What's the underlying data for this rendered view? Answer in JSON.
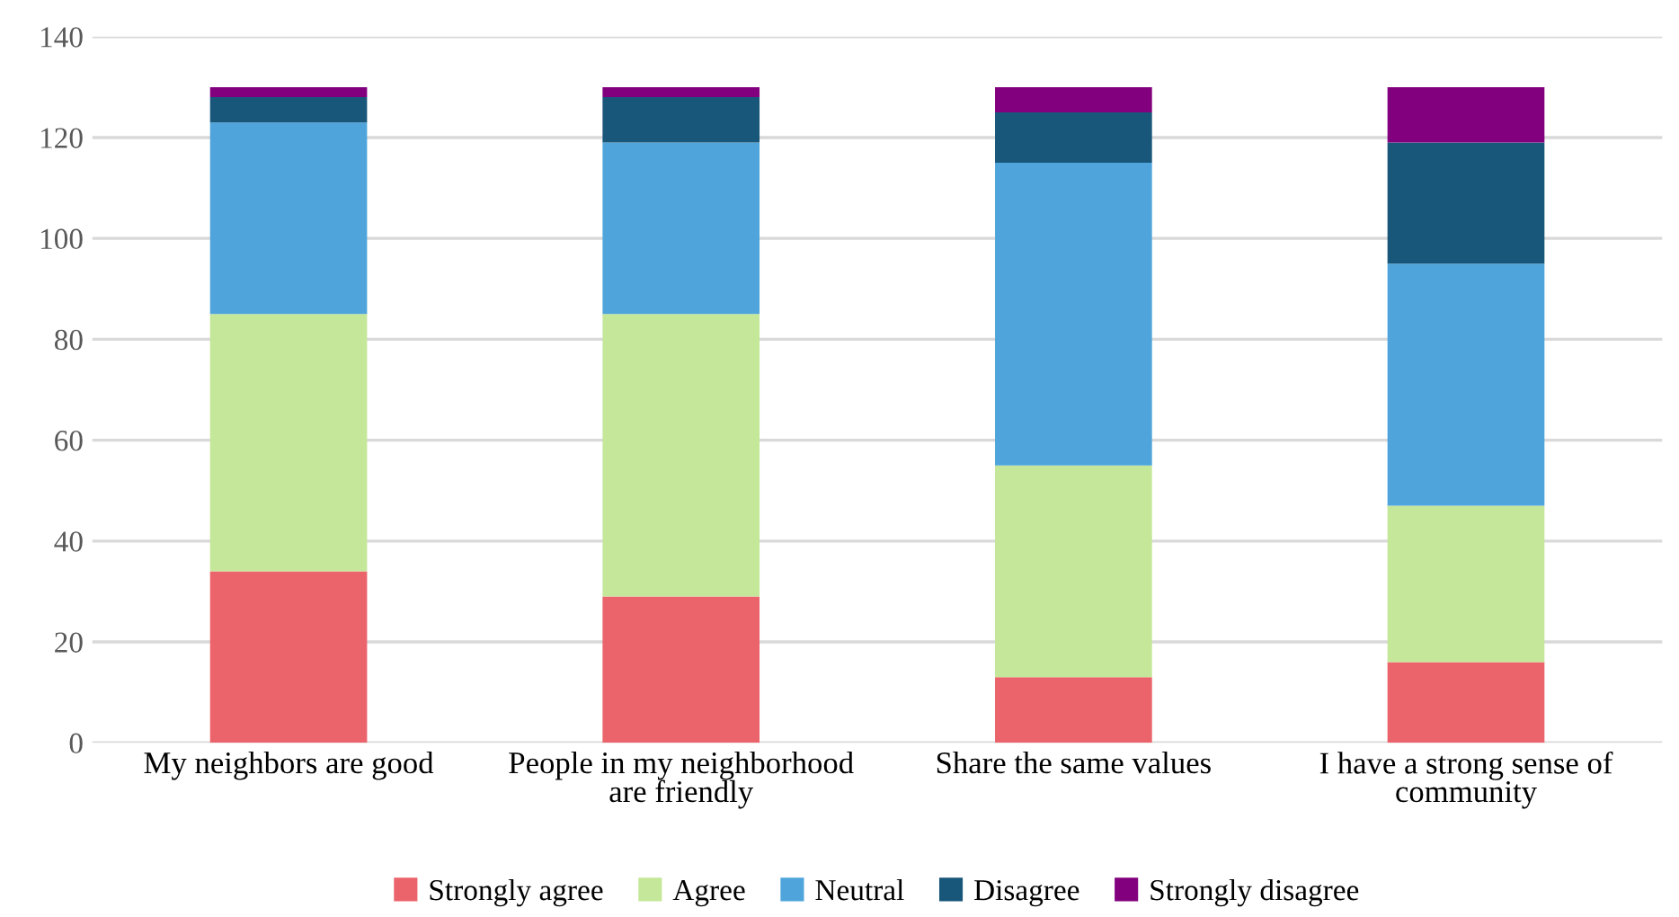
{
  "chart_data": {
    "type": "bar",
    "stacked": true,
    "categories": [
      "My neighbors are good",
      "People in my neighborhood are friendly",
      "Share the same values",
      "I have a strong sense of community"
    ],
    "series": [
      {
        "name": "Strongly agree",
        "color": "#eb646b",
        "values": [
          34,
          29,
          13,
          16
        ]
      },
      {
        "name": "Agree",
        "color": "#c5e799",
        "values": [
          51,
          56,
          42,
          31
        ]
      },
      {
        "name": "Neutral",
        "color": "#4fa5db",
        "values": [
          38,
          34,
          60,
          48
        ]
      },
      {
        "name": "Disagree",
        "color": "#18567a",
        "values": [
          5,
          9,
          10,
          24
        ]
      },
      {
        "name": "Strongly disagree",
        "color": "#82007e",
        "values": [
          2,
          2,
          5,
          11
        ]
      }
    ],
    "ylim": [
      0,
      140
    ],
    "yticks": [
      0,
      20,
      40,
      60,
      80,
      100,
      120,
      140
    ],
    "grid": "y",
    "legend": "bottom"
  }
}
